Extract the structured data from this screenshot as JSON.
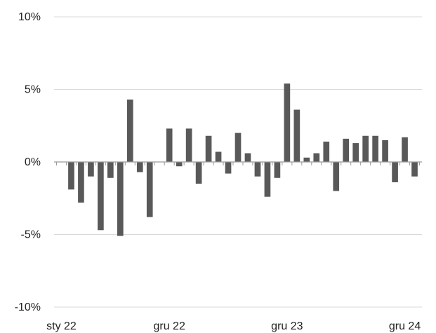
{
  "chart_data": {
    "type": "bar",
    "title": "",
    "xlabel": "",
    "ylabel": "",
    "ylim": [
      -10,
      10
    ],
    "y_ticks": [
      10,
      5,
      0,
      -5,
      -10
    ],
    "y_tick_labels": [
      "10%",
      "5%",
      "0%",
      "-5%",
      "-10%"
    ],
    "x_tick_labels": [
      {
        "index": 0,
        "label": "sty 22"
      },
      {
        "index": 11,
        "label": "gru 22"
      },
      {
        "index": 23,
        "label": "gru 23"
      },
      {
        "index": 35,
        "label": "gru 24"
      }
    ],
    "grid": true,
    "bar_color": "#595959",
    "values": [
      0,
      -1.9,
      -2.8,
      -1.0,
      -4.7,
      -1.1,
      -5.1,
      4.3,
      -0.7,
      -3.8,
      0,
      2.3,
      -0.3,
      2.3,
      -1.5,
      1.8,
      0.7,
      -0.8,
      2.0,
      0.6,
      -1.0,
      -2.4,
      -1.1,
      5.4,
      3.6,
      0.3,
      0.6,
      1.4,
      -2.0,
      1.6,
      1.3,
      1.8,
      1.8,
      1.5,
      -1.4,
      1.7,
      -1.0
    ]
  }
}
